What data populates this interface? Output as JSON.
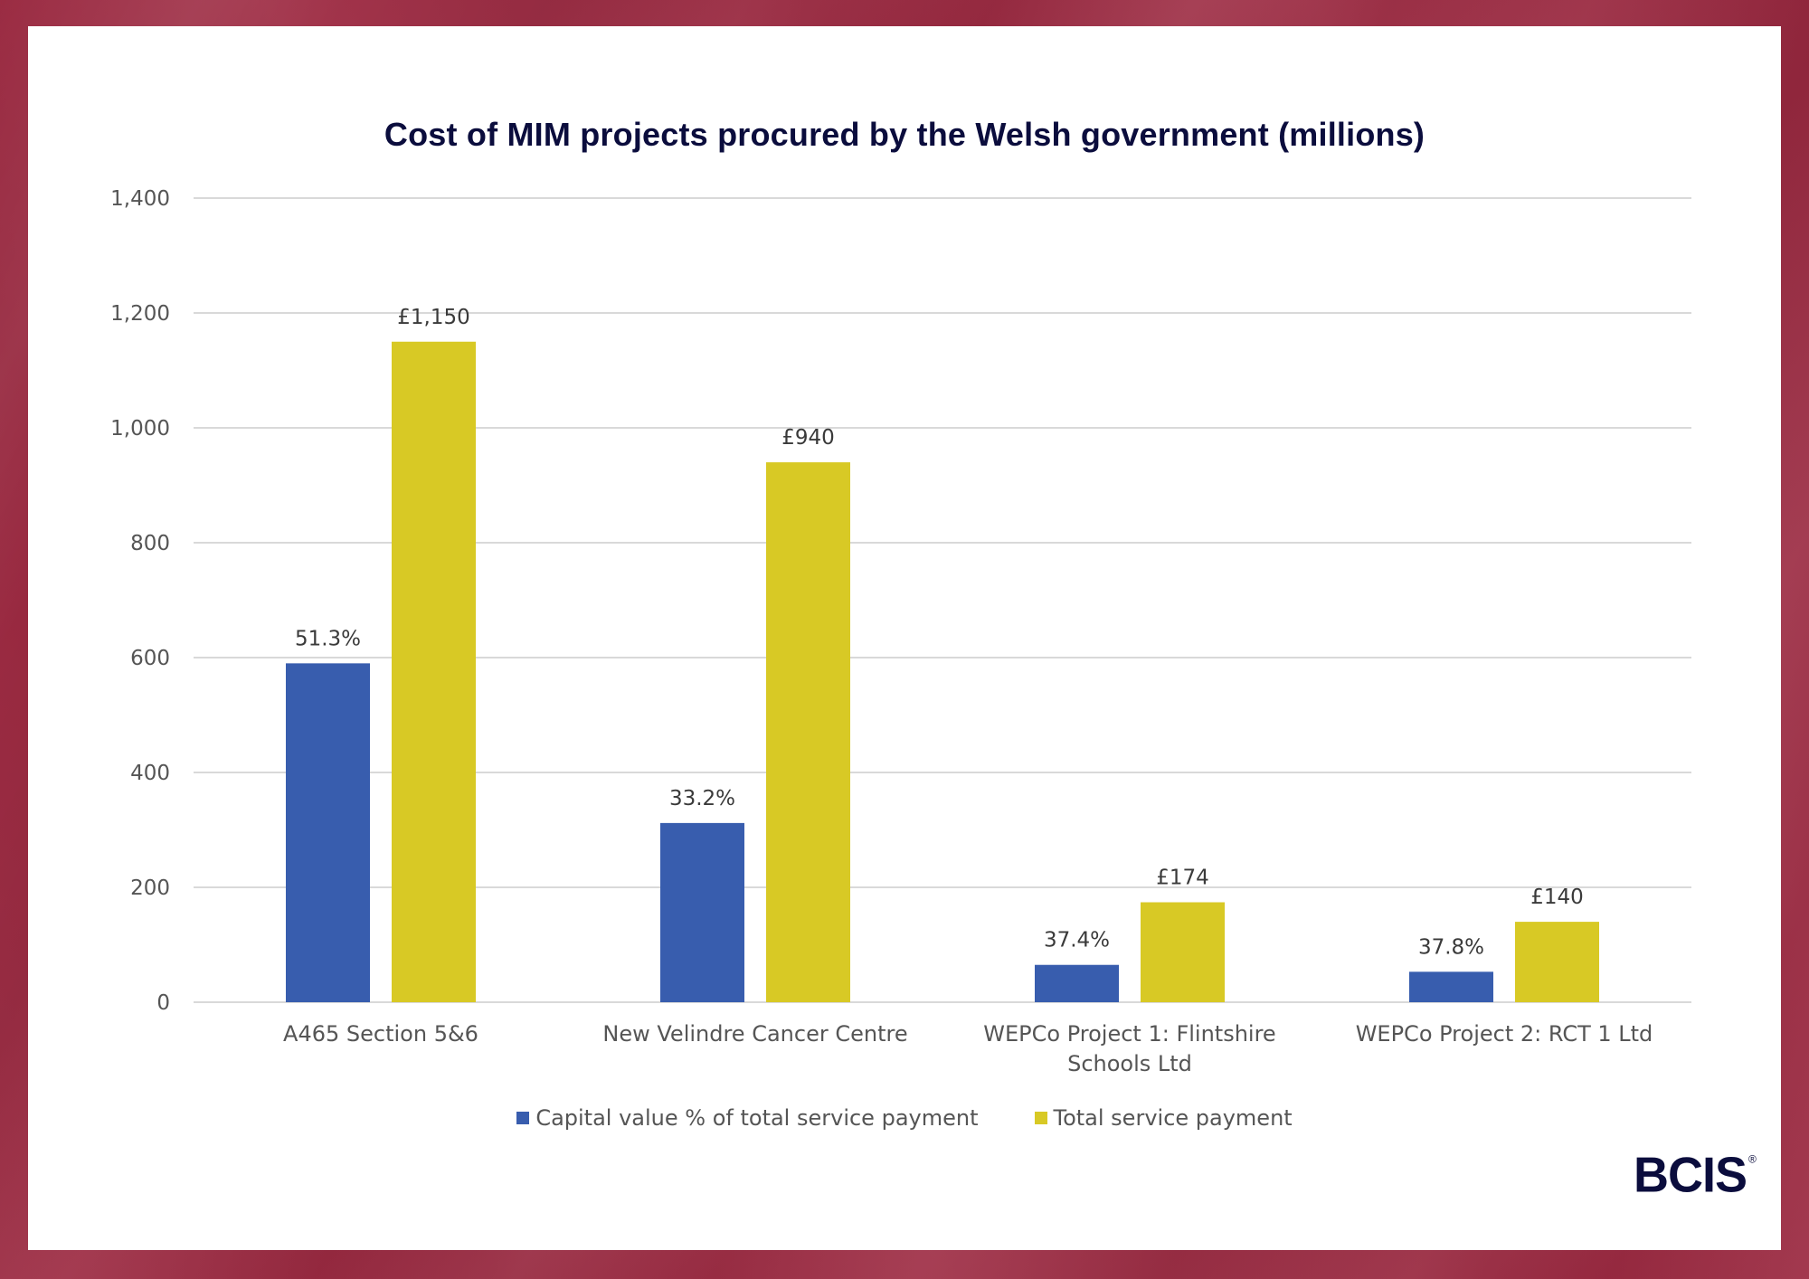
{
  "colors": {
    "capital": "#385dae",
    "total": "#d8c925",
    "grid": "#d9d9d9",
    "title": "#0b0d3d",
    "frame": "#9c2840"
  },
  "logo": {
    "text": "BCIS",
    "mark": "®"
  },
  "chart_data": {
    "type": "bar",
    "title": "Cost of MIM projects procured by the Welsh government (millions)",
    "xlabel": "",
    "ylabel": "",
    "ylim": [
      0,
      1400
    ],
    "yticks": [
      0,
      200,
      400,
      600,
      800,
      1000,
      1200,
      1400
    ],
    "ytick_labels": [
      "0",
      "200",
      "400",
      "600",
      "800",
      "1,000",
      "1,200",
      "1,400"
    ],
    "grid": true,
    "legend_position": "bottom",
    "categories": [
      "A465 Section 5&6",
      "New Velindre Cancer Centre",
      "WEPCo Project 1: Flintshire Schools Ltd",
      "WEPCo Project 2: RCT 1 Ltd"
    ],
    "category_lines": [
      [
        "A465 Section 5&6"
      ],
      [
        "New Velindre Cancer Centre"
      ],
      [
        "WEPCo Project 1: Flintshire",
        "Schools Ltd"
      ],
      [
        "WEPCo Project 2: RCT 1 Ltd"
      ]
    ],
    "series": [
      {
        "name": "Capital value % of total service payment",
        "color_key": "capital",
        "values": [
          590,
          312,
          65,
          53
        ],
        "data_labels": [
          "51.3%",
          "33.2%",
          "37.4%",
          "37.8%"
        ]
      },
      {
        "name": "Total service payment",
        "color_key": "total",
        "values": [
          1150,
          940,
          174,
          140
        ],
        "data_labels": [
          "£1,150",
          "£940",
          "£174",
          "£140"
        ]
      }
    ]
  }
}
